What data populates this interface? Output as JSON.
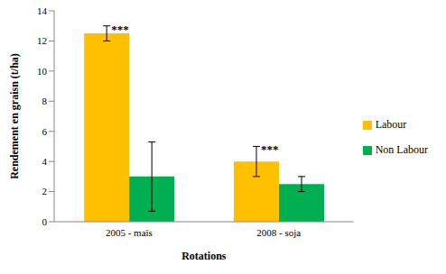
{
  "chart_data": {
    "type": "bar",
    "x_label": "Rotations",
    "y_label": "Rendement en graisn (t/ha)",
    "categories": [
      "2005 - maïs",
      "2008 - soja"
    ],
    "series": [
      {
        "name": "Labour",
        "color": "#FFC000",
        "values": [
          12.5,
          4
        ],
        "errors": [
          0.5,
          1
        ],
        "annotations": [
          "***",
          "***"
        ]
      },
      {
        "name": "Non Labour",
        "color": "#00B050",
        "values": [
          3,
          2.5
        ],
        "errors": [
          2.3,
          0.5
        ]
      }
    ],
    "ylim": [
      0,
      14
    ],
    "yticks": [
      0,
      2,
      4,
      6,
      8,
      10,
      12,
      14
    ],
    "grid": false,
    "legend": "right"
  }
}
